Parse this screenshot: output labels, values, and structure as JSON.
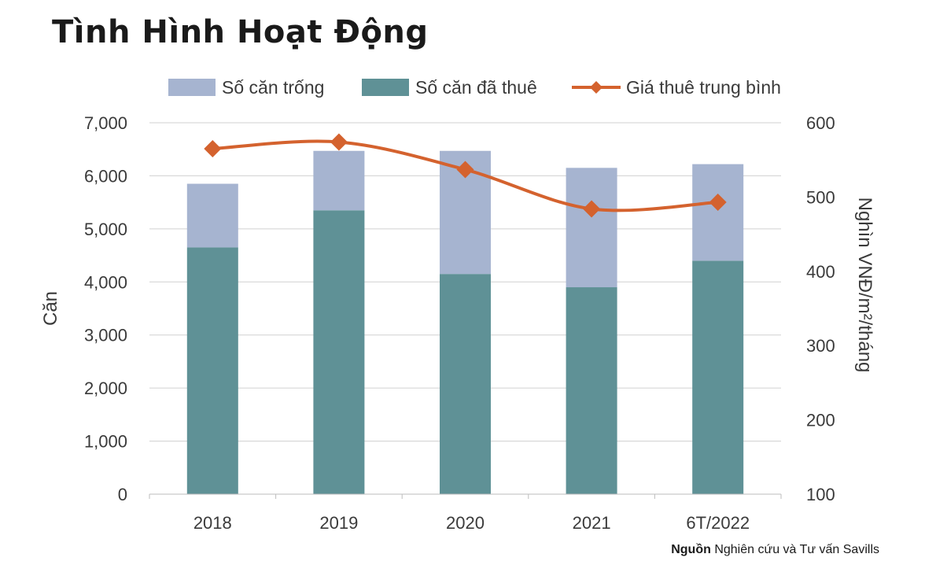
{
  "title": "Tình Hình Hoạt Động",
  "source": {
    "label": "Nguồn",
    "text": "Nghiên cứu và Tư vấn Savills"
  },
  "colors": {
    "vacant": "#a6b4d0",
    "leased": "#5f9196",
    "price": "#d4622e",
    "grid": "#d0d0d0",
    "axis_text": "#3a3a3a"
  },
  "chart_data": {
    "type": "bar",
    "stacked": true,
    "categories": [
      "2018",
      "2019",
      "2020",
      "2021",
      "6T/2022"
    ],
    "series": [
      {
        "name": "Số căn đã thuê",
        "axis": "left",
        "values": [
          4650,
          5350,
          4150,
          3900,
          4400
        ]
      },
      {
        "name": "Số căn trống",
        "axis": "left",
        "values": [
          1200,
          1120,
          2320,
          2250,
          1820
        ]
      },
      {
        "name": "Giá thuê trung bình",
        "type": "line",
        "axis": "right",
        "values": [
          565,
          574,
          537,
          484,
          493
        ]
      }
    ],
    "legend": [
      "Số căn trống",
      "Số căn đã thuê",
      "Giá thuê trung bình"
    ],
    "legend_position": "top",
    "ylabel": "Căn",
    "y2label": "Nghìn VNĐ/m²/tháng",
    "ylim": [
      0,
      7000
    ],
    "yticks": [
      "0",
      "1,000",
      "2,000",
      "3,000",
      "4,000",
      "5,000",
      "6,000",
      "7,000"
    ],
    "y2lim": [
      100,
      600
    ],
    "y2ticks": [
      "100",
      "200",
      "300",
      "400",
      "500",
      "600"
    ],
    "grid": true
  }
}
